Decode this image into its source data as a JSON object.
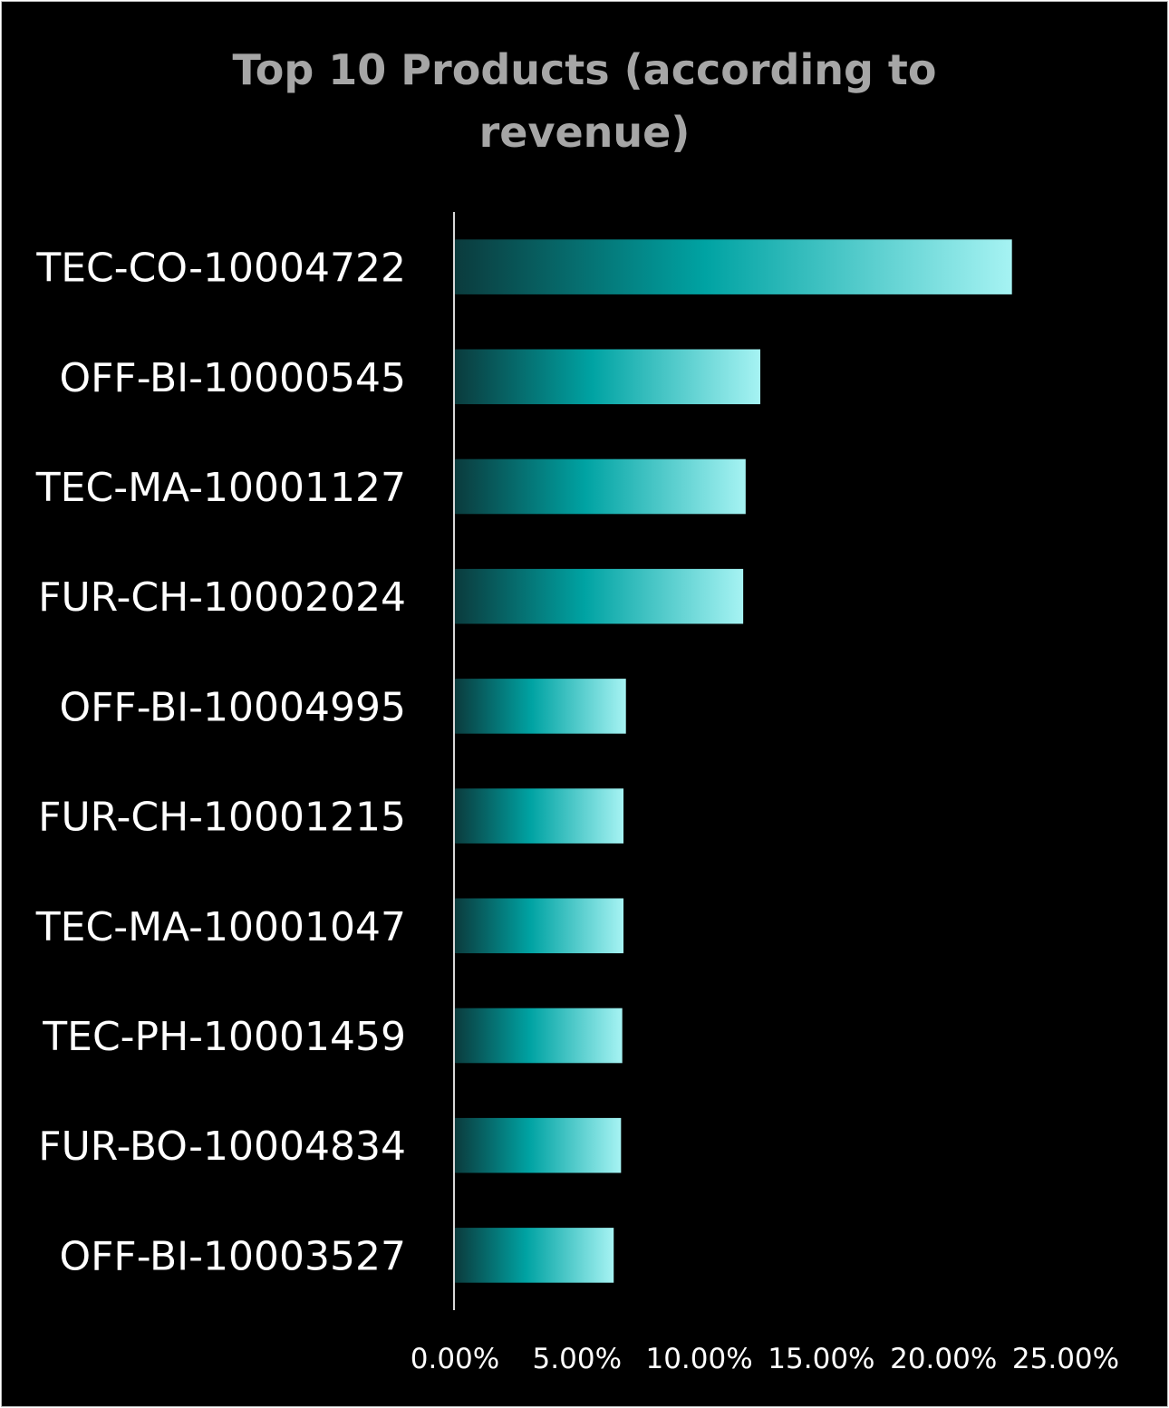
{
  "chart_data": {
    "type": "bar",
    "orientation": "horizontal",
    "title_lines": [
      "Top 10 Products (according to",
      "revenue)"
    ],
    "categories": [
      "TEC-CO-10004722",
      "OFF-BI-10000545",
      "TEC-MA-10001127",
      "FUR-CH-10002024",
      "OFF-BI-10004995",
      "FUR-CH-10001215",
      "TEC-MA-10001047",
      "TEC-PH-10001459",
      "FUR-BO-10004834",
      "OFF-BI-10003527"
    ],
    "values": [
      22.8,
      12.5,
      11.9,
      11.8,
      7.0,
      6.9,
      6.9,
      6.85,
      6.8,
      6.5
    ],
    "value_unit": "%",
    "xlim": [
      0,
      25
    ],
    "x_ticks": [
      "0.00%",
      "5.00%",
      "10.00%",
      "15.00%",
      "20.00%",
      "25.00%"
    ],
    "x_tick_values": [
      0,
      5,
      10,
      15,
      20,
      25
    ],
    "grid": false,
    "legend": "none",
    "colors": {
      "background": "#000000",
      "bar_gradient_start": "#0b3b3d",
      "bar_gradient_mid": "#00a3a3",
      "bar_gradient_end": "#a6f3f3",
      "axis": "#d9d9d9",
      "title": "#a6a6a6",
      "labels": "#ffffff"
    }
  }
}
